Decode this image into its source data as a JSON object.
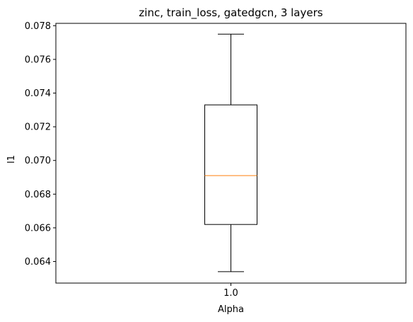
{
  "chart_data": {
    "type": "box",
    "title": "zinc, train_loss, gatedgcn, 3 layers",
    "xlabel": "Alpha",
    "ylabel": "l1",
    "categories": [
      "1.0"
    ],
    "ylim": [
      0.06272,
      0.07814
    ],
    "yticks": [
      0.064,
      0.066,
      0.068,
      0.07,
      0.072,
      0.074,
      0.076,
      0.078
    ],
    "ytick_labels": [
      "0.064",
      "0.066",
      "0.068",
      "0.070",
      "0.072",
      "0.074",
      "0.076",
      "0.078"
    ],
    "boxes": [
      {
        "category": "1.0",
        "whisker_low": 0.0634,
        "q1": 0.0662,
        "median": 0.0691,
        "q3": 0.0733,
        "whisker_high": 0.0775
      }
    ],
    "grid": false,
    "colors": {
      "box": "#000000",
      "median": "#ff7f0e",
      "frame": "#000000"
    }
  }
}
